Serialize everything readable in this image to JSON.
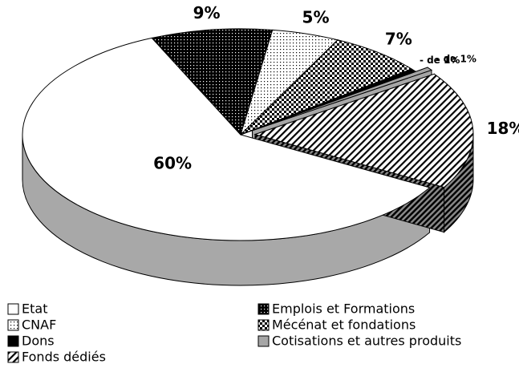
{
  "chart_data": {
    "type": "pie",
    "categories": [
      "Etat",
      "Emplois et Formations",
      "CNAF",
      "Mécénat et fondations",
      "Dons",
      "Cotisations et autres produits",
      "Fonds dédiés"
    ],
    "values": [
      60,
      9,
      5,
      7,
      0.5,
      0.5,
      18
    ],
    "value_labels": [
      "60%",
      "9%",
      "5%",
      "7%",
      "- de 1%",
      "- de 1%",
      "18%"
    ],
    "colors": [
      "#ffffff",
      "#000000",
      "#ffffff",
      "#000000",
      "#000000",
      "#a6a6a6",
      "#ffffff"
    ],
    "patterns": [
      "none",
      "dots",
      "dots",
      "checker",
      "none",
      "none",
      "diagonal"
    ],
    "explode": [
      0,
      0,
      0,
      0,
      0,
      1,
      1
    ],
    "legend": "bottom"
  }
}
